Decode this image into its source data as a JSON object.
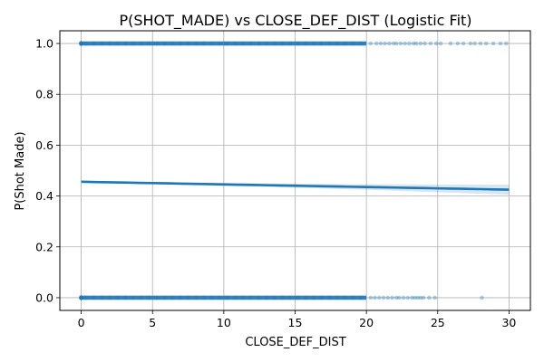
{
  "chart_data": {
    "type": "scatter",
    "title": "P(SHOT_MADE) vs CLOSE_DEF_DIST (Logistic Fit)",
    "xlabel": "CLOSE_DEF_DIST",
    "ylabel": "P(Shot Made)",
    "xlim": [
      -1.5,
      31.5
    ],
    "ylim": [
      -0.05,
      1.05
    ],
    "xticks": [
      0,
      5,
      10,
      15,
      20,
      25,
      30
    ],
    "yticks": [
      0.0,
      0.2,
      0.4,
      0.6,
      0.8,
      1.0
    ],
    "xtick_labels": [
      "0",
      "5",
      "10",
      "15",
      "20",
      "25",
      "30"
    ],
    "ytick_labels": [
      "0.0",
      "0.2",
      "0.4",
      "0.6",
      "0.8",
      "1.0"
    ],
    "grid": true,
    "colors": {
      "points": "#1f77b4",
      "line": "#1f77b4",
      "band": "#1f77b4",
      "grid": "#b0b0b0"
    },
    "series": [
      {
        "kind": "points",
        "y": 1.0,
        "dense_range": [
          0,
          20
        ],
        "x": [
          20.3,
          20.7,
          21.0,
          21.3,
          21.6,
          21.9,
          22.1,
          22.4,
          22.7,
          23.0,
          23.3,
          23.5,
          23.8,
          24.1,
          24.5,
          24.9,
          25.2,
          25.9,
          26.4,
          26.8,
          27.3,
          27.6,
          28.0,
          28.4,
          28.9,
          29.4,
          29.8
        ]
      },
      {
        "kind": "points",
        "y": 0.0,
        "dense_range": [
          0,
          20
        ],
        "x": [
          20.3,
          20.6,
          20.9,
          21.2,
          21.5,
          21.8,
          22.1,
          22.3,
          22.6,
          22.9,
          23.2,
          23.4,
          23.6,
          23.8,
          24.0,
          24.4,
          24.8,
          28.1
        ]
      },
      {
        "kind": "logistic-fit",
        "x": [
          0,
          30
        ],
        "y": [
          0.456,
          0.425
        ],
        "ci_halfwidth": [
          0.004,
          0.02
        ]
      }
    ]
  }
}
